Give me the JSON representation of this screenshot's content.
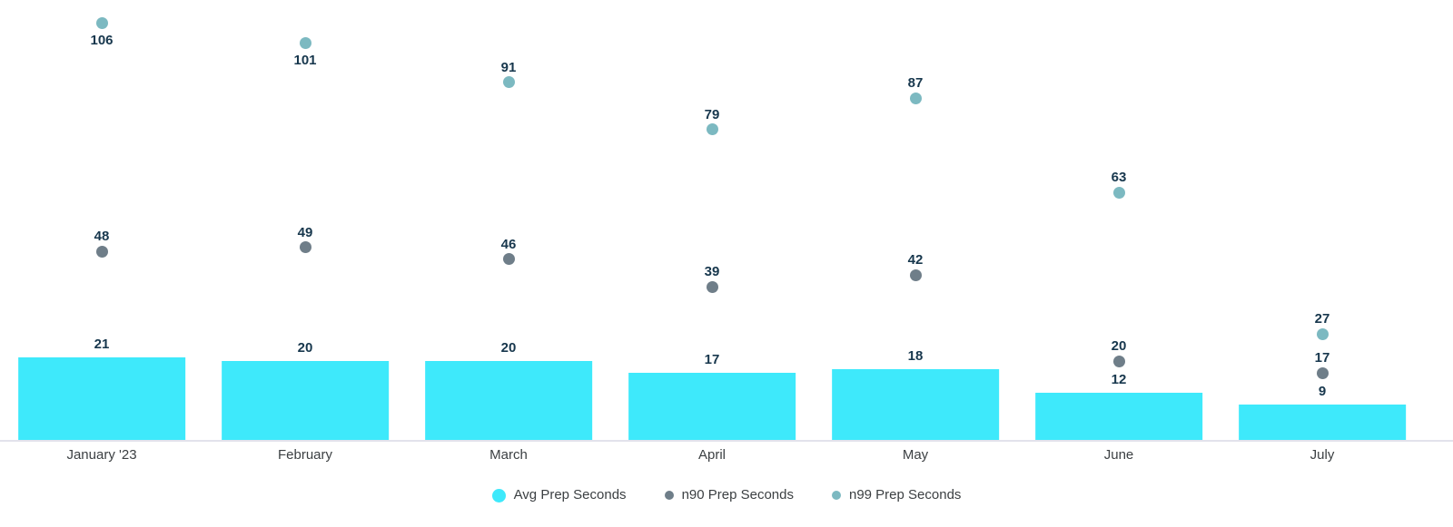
{
  "chart_data": {
    "type": "bar",
    "subtype": "combo-bar-with-points",
    "title": "",
    "xlabel": "",
    "ylabel": "",
    "categories": [
      "January '23",
      "February",
      "March",
      "April",
      "May",
      "June",
      "July"
    ],
    "series": [
      {
        "name": "Avg Prep Seconds",
        "mark": "bar",
        "color": "#3ee9fb",
        "values": [
          21,
          20,
          20,
          17,
          18,
          12,
          9
        ]
      },
      {
        "name": "n90 Prep Seconds",
        "mark": "point",
        "color": "#6f7e89",
        "values": [
          48,
          49,
          46,
          39,
          42,
          20,
          17
        ]
      },
      {
        "name": "n99 Prep Seconds",
        "mark": "point",
        "color": "#7cb9c1",
        "values": [
          106,
          101,
          91,
          79,
          87,
          63,
          27
        ]
      }
    ],
    "ylim": [
      0,
      112
    ],
    "grid": false,
    "y_axis_visible": false,
    "legend_position": "bottom",
    "value_labels": true,
    "value_label_color": "#17374d",
    "axis_label_color": "#3c4043",
    "baseline_color": "#e2e2ec"
  }
}
